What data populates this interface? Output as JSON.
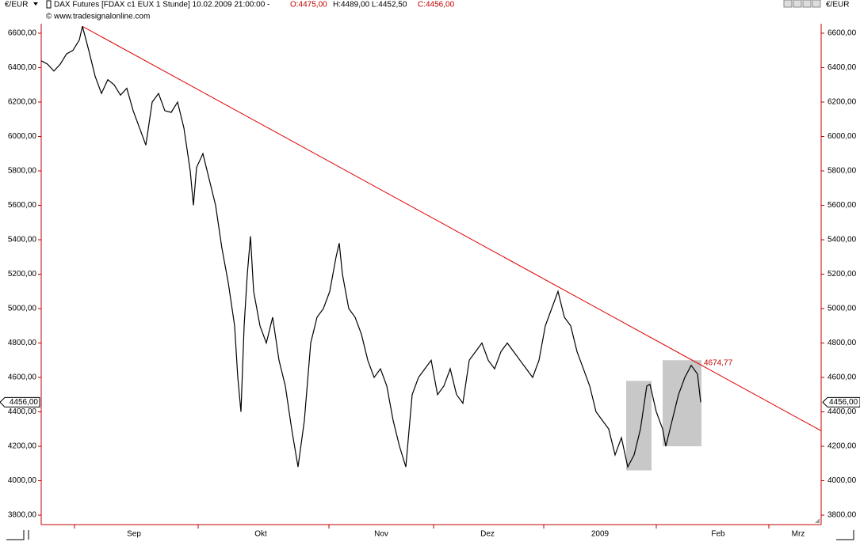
{
  "chart_data": {
    "type": "line",
    "currency_left": "€/EUR",
    "currency_right": "€/EUR",
    "title": "DAX Futures [FDAX c1 EUX  1 Stunde] 10.02.2009 21:00:00 -",
    "open_label": "O:4475,00",
    "high_low_label": "H:4489,00 L:4452,50",
    "close_label": "C:4456,00",
    "subtitle": "© www.tradesignalonline.com",
    "x": [
      0,
      2,
      4,
      6,
      8,
      10,
      12,
      13,
      15,
      17,
      19,
      21,
      23,
      25,
      27,
      29,
      31,
      33,
      35,
      37,
      39,
      41,
      43,
      45,
      47,
      48,
      49,
      51,
      53,
      55,
      57,
      59,
      61,
      62,
      63,
      64,
      65,
      66,
      67,
      69,
      71,
      73,
      75,
      77,
      79,
      81,
      83,
      85,
      87,
      89,
      91,
      93,
      94,
      95,
      97,
      99,
      101,
      103,
      105,
      107,
      109,
      111,
      113,
      115,
      117,
      119,
      121,
      123,
      125,
      127,
      129,
      131,
      133,
      135,
      137,
      139,
      141,
      143,
      145,
      147,
      149,
      151,
      153,
      155,
      157,
      159,
      161,
      163,
      165,
      167,
      169,
      171,
      173,
      175,
      177,
      179,
      181,
      183,
      185,
      187,
      189,
      191,
      192,
      194,
      196,
      197,
      199,
      201,
      203,
      205,
      207,
      208
    ],
    "series": [
      {
        "name": "DAX Futures",
        "color": "#000000",
        "values": [
          6440,
          6420,
          6380,
          6420,
          6480,
          6500,
          6560,
          6640,
          6500,
          6350,
          6250,
          6330,
          6300,
          6240,
          6280,
          6150,
          6050,
          5950,
          6200,
          6250,
          6150,
          6140,
          6200,
          6050,
          5800,
          5600,
          5820,
          5900,
          5750,
          5600,
          5350,
          5150,
          4900,
          4600,
          4400,
          4900,
          5200,
          5420,
          5100,
          4900,
          4800,
          4950,
          4700,
          4550,
          4300,
          4080,
          4350,
          4800,
          4950,
          5000,
          5100,
          5300,
          5380,
          5200,
          5000,
          4950,
          4850,
          4700,
          4600,
          4650,
          4550,
          4350,
          4200,
          4080,
          4500,
          4600,
          4650,
          4700,
          4500,
          4550,
          4650,
          4500,
          4450,
          4700,
          4750,
          4800,
          4700,
          4650,
          4750,
          4800,
          4750,
          4700,
          4650,
          4600,
          4700,
          4900,
          5000,
          5100,
          4950,
          4900,
          4750,
          4650,
          4550,
          4400,
          4350,
          4300,
          4150,
          4250,
          4080,
          4150,
          4300,
          4550,
          4560,
          4400,
          4300,
          4200,
          4350,
          4500,
          4600,
          4670,
          4620,
          4456
        ]
      }
    ],
    "trendline": {
      "color": "#e00000",
      "x": [
        13,
        246
      ],
      "values": [
        6640,
        4290
      ]
    },
    "annotation": {
      "x": 208,
      "value": 4674.77,
      "label": "4674,77"
    },
    "last_price": {
      "value": 4456,
      "label": "4456,00"
    },
    "highlight_boxes": [
      {
        "color": "#c8c8c8",
        "x": [
          184.5,
          192.5
        ],
        "y": [
          4060,
          4580
        ]
      },
      {
        "color": "#c8c8c8",
        "x": [
          196,
          208.25
        ],
        "y": [
          4200,
          4700
        ]
      }
    ],
    "xlim": [
      0,
      246
    ],
    "xticks": [
      {
        "value": 29.25,
        "label": "Sep"
      },
      {
        "value": 69.25,
        "label": "Okt"
      },
      {
        "value": 107.25,
        "label": "Nov"
      },
      {
        "value": 140.75,
        "label": "Dez"
      },
      {
        "value": 176.25,
        "label": "2009"
      },
      {
        "value": 213.5,
        "label": "Feb"
      },
      {
        "value": 238.75,
        "label": "Mrz"
      }
    ],
    "month_boundaries": [
      10.5,
      49.5,
      90.75,
      123.75,
      158.5,
      194,
      229.5
    ],
    "ylim": [
      3745,
      6655
    ],
    "yticks": [
      {
        "value": 3800,
        "label": "3800,00"
      },
      {
        "value": 4000,
        "label": "4000,00"
      },
      {
        "value": 4200,
        "label": "4200,00"
      },
      {
        "value": 4400,
        "label": "4400,00"
      },
      {
        "value": 4600,
        "label": "4600,00"
      },
      {
        "value": 4800,
        "label": "4800,00"
      },
      {
        "value": 5000,
        "label": "5000,00"
      },
      {
        "value": 5200,
        "label": "5200,00"
      },
      {
        "value": 5400,
        "label": "5400,00"
      },
      {
        "value": 5600,
        "label": "5600,00"
      },
      {
        "value": 5800,
        "label": "5800,00"
      },
      {
        "value": 6000,
        "label": "6000,00"
      },
      {
        "value": 6200,
        "label": "6200,00"
      },
      {
        "value": 6400,
        "label": "6400,00"
      },
      {
        "value": 6600,
        "label": "6600,00"
      }
    ]
  }
}
